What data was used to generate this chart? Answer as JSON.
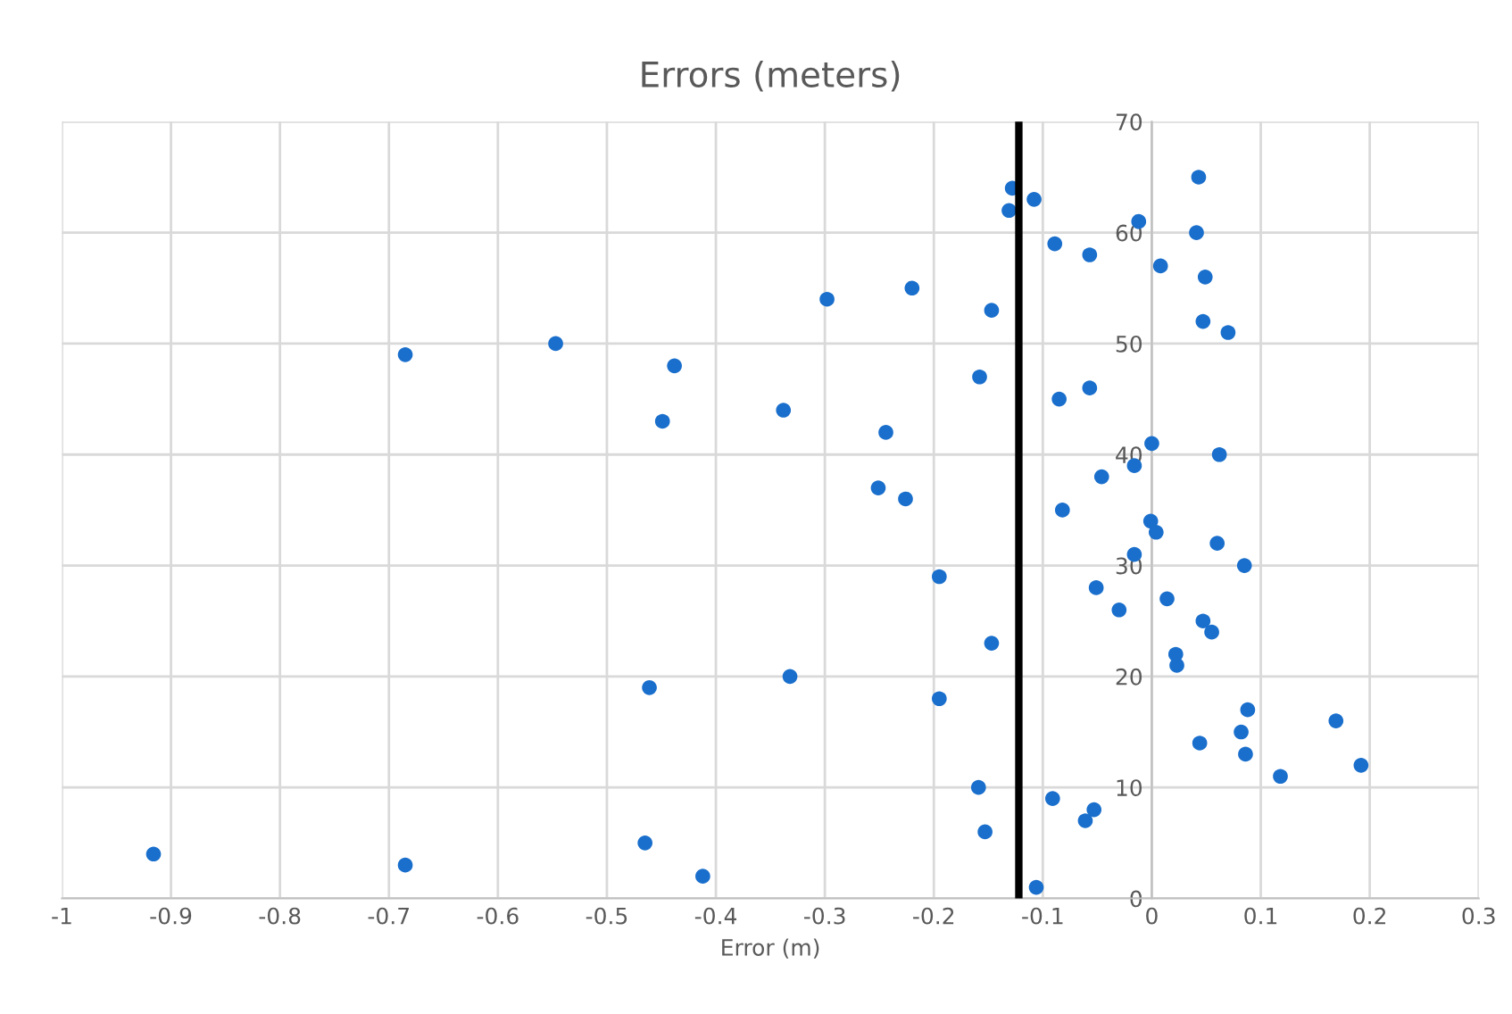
{
  "chart_data": {
    "type": "scatter",
    "title": "Errors (meters)",
    "xlabel": "Error (m)",
    "x": [
      -0.106,
      -0.412,
      -0.685,
      -0.916,
      -0.465,
      -0.153,
      -0.061,
      -0.053,
      -0.091,
      -0.159,
      0.118,
      0.192,
      0.086,
      0.044,
      0.082,
      0.169,
      0.088,
      -0.195,
      -0.461,
      -0.332,
      0.023,
      0.022,
      -0.147,
      0.055,
      0.047,
      -0.03,
      0.014,
      -0.051,
      -0.195,
      0.085,
      -0.016,
      0.06,
      0.004,
      -0.001,
      -0.082,
      -0.226,
      -0.251,
      -0.046,
      -0.016,
      0.062,
      0.0,
      -0.244,
      -0.449,
      -0.338,
      -0.085,
      -0.057,
      -0.158,
      -0.438,
      -0.685,
      -0.547,
      0.07,
      0.047,
      -0.147,
      -0.298,
      -0.22,
      0.049,
      0.008,
      -0.057,
      -0.089,
      0.041,
      -0.012,
      -0.131,
      -0.108,
      -0.128,
      0.043
    ],
    "series": [
      {
        "color": "#1a6fcc",
        "values": [
          1,
          2,
          3,
          4,
          5,
          6,
          7,
          8,
          9,
          10,
          11,
          12,
          13,
          14,
          15,
          16,
          17,
          18,
          19,
          20,
          21,
          22,
          23,
          24,
          25,
          26,
          27,
          28,
          29,
          30,
          31,
          32,
          33,
          34,
          35,
          36,
          37,
          38,
          39,
          40,
          41,
          42,
          43,
          44,
          45,
          46,
          47,
          48,
          49,
          50,
          51,
          52,
          53,
          54,
          55,
          56,
          57,
          58,
          59,
          60,
          61,
          62,
          63,
          64,
          65
        ]
      }
    ],
    "xlim": [
      -1,
      0.3
    ],
    "xticks": [
      -1,
      -0.9,
      -0.8,
      -0.7,
      -0.6,
      -0.5,
      -0.4,
      -0.3,
      -0.2,
      -0.1,
      0,
      0.1,
      0.2,
      0.3
    ],
    "ylim": [
      0,
      70
    ],
    "yticks": [
      0,
      10,
      20,
      30,
      40,
      50,
      60,
      70
    ],
    "ref_lines": [
      {
        "axis": "x",
        "value": -0.122,
        "color": "#000000"
      }
    ],
    "grid": true,
    "marker": "circle"
  }
}
